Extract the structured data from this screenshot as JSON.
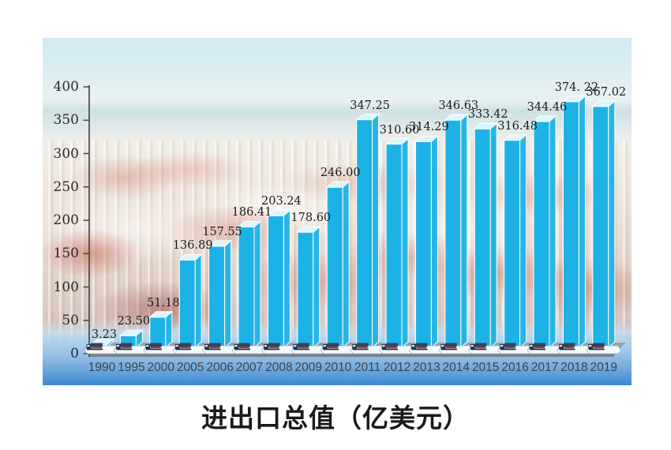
{
  "title": {
    "text": "进出口总值（亿美元）",
    "color": "#1a1a1a"
  },
  "chart_data": {
    "type": "bar",
    "title": "进出口总值（亿美元）",
    "unit": "亿美元",
    "categories": [
      "1990",
      "1995",
      "2000",
      "2005",
      "2006",
      "2007",
      "2008",
      "2009",
      "2010",
      "2011",
      "2012",
      "2013",
      "2014",
      "2015",
      "2016",
      "2017",
      "2018",
      "2019"
    ],
    "values": [
      3.23,
      23.5,
      51.18,
      136.89,
      157.55,
      186.41,
      203.24,
      178.6,
      246.0,
      347.25,
      310.6,
      314.29,
      346.63,
      333.42,
      316.48,
      344.46,
      374.22,
      367.02
    ],
    "value_labels": [
      "3.23",
      "23.50",
      "51.18",
      "136.89",
      "157.55",
      "186.41",
      "203.24",
      "178.60",
      "246.00",
      "347.25",
      "310.60",
      "314.29",
      "346.63",
      "333.42",
      "316.48",
      "344.46",
      "374. 22",
      "367.02"
    ],
    "ylim": [
      0,
      400
    ],
    "ytick_step": 50,
    "ytick_labels": [
      "0",
      "50",
      "100",
      "150",
      "200",
      "250",
      "300",
      "350",
      "400"
    ],
    "grid": false,
    "legend": "none",
    "background": "hazy container-port photo with water gradient at bottom",
    "base_icon": "container-truck-on-white-pedestal",
    "colors": {
      "bar_front": "#1db2e6",
      "bar_side": "#29b5e4",
      "bar_top": "#ddf4fb",
      "bar_edge": "#ffffff",
      "platform_top": "#9aa0a5",
      "platform_front": "#7b8187",
      "pedestal": "#f4f9fc",
      "truck_body": "#31445f",
      "truck_stripe": "#aa3636",
      "axis": "#3f3f3f",
      "value_label": "#1c1c1c",
      "ytick_label": "#2b2b2b",
      "xtick_label": "#3d434c",
      "water_bottom": "#3a8ad2"
    }
  }
}
